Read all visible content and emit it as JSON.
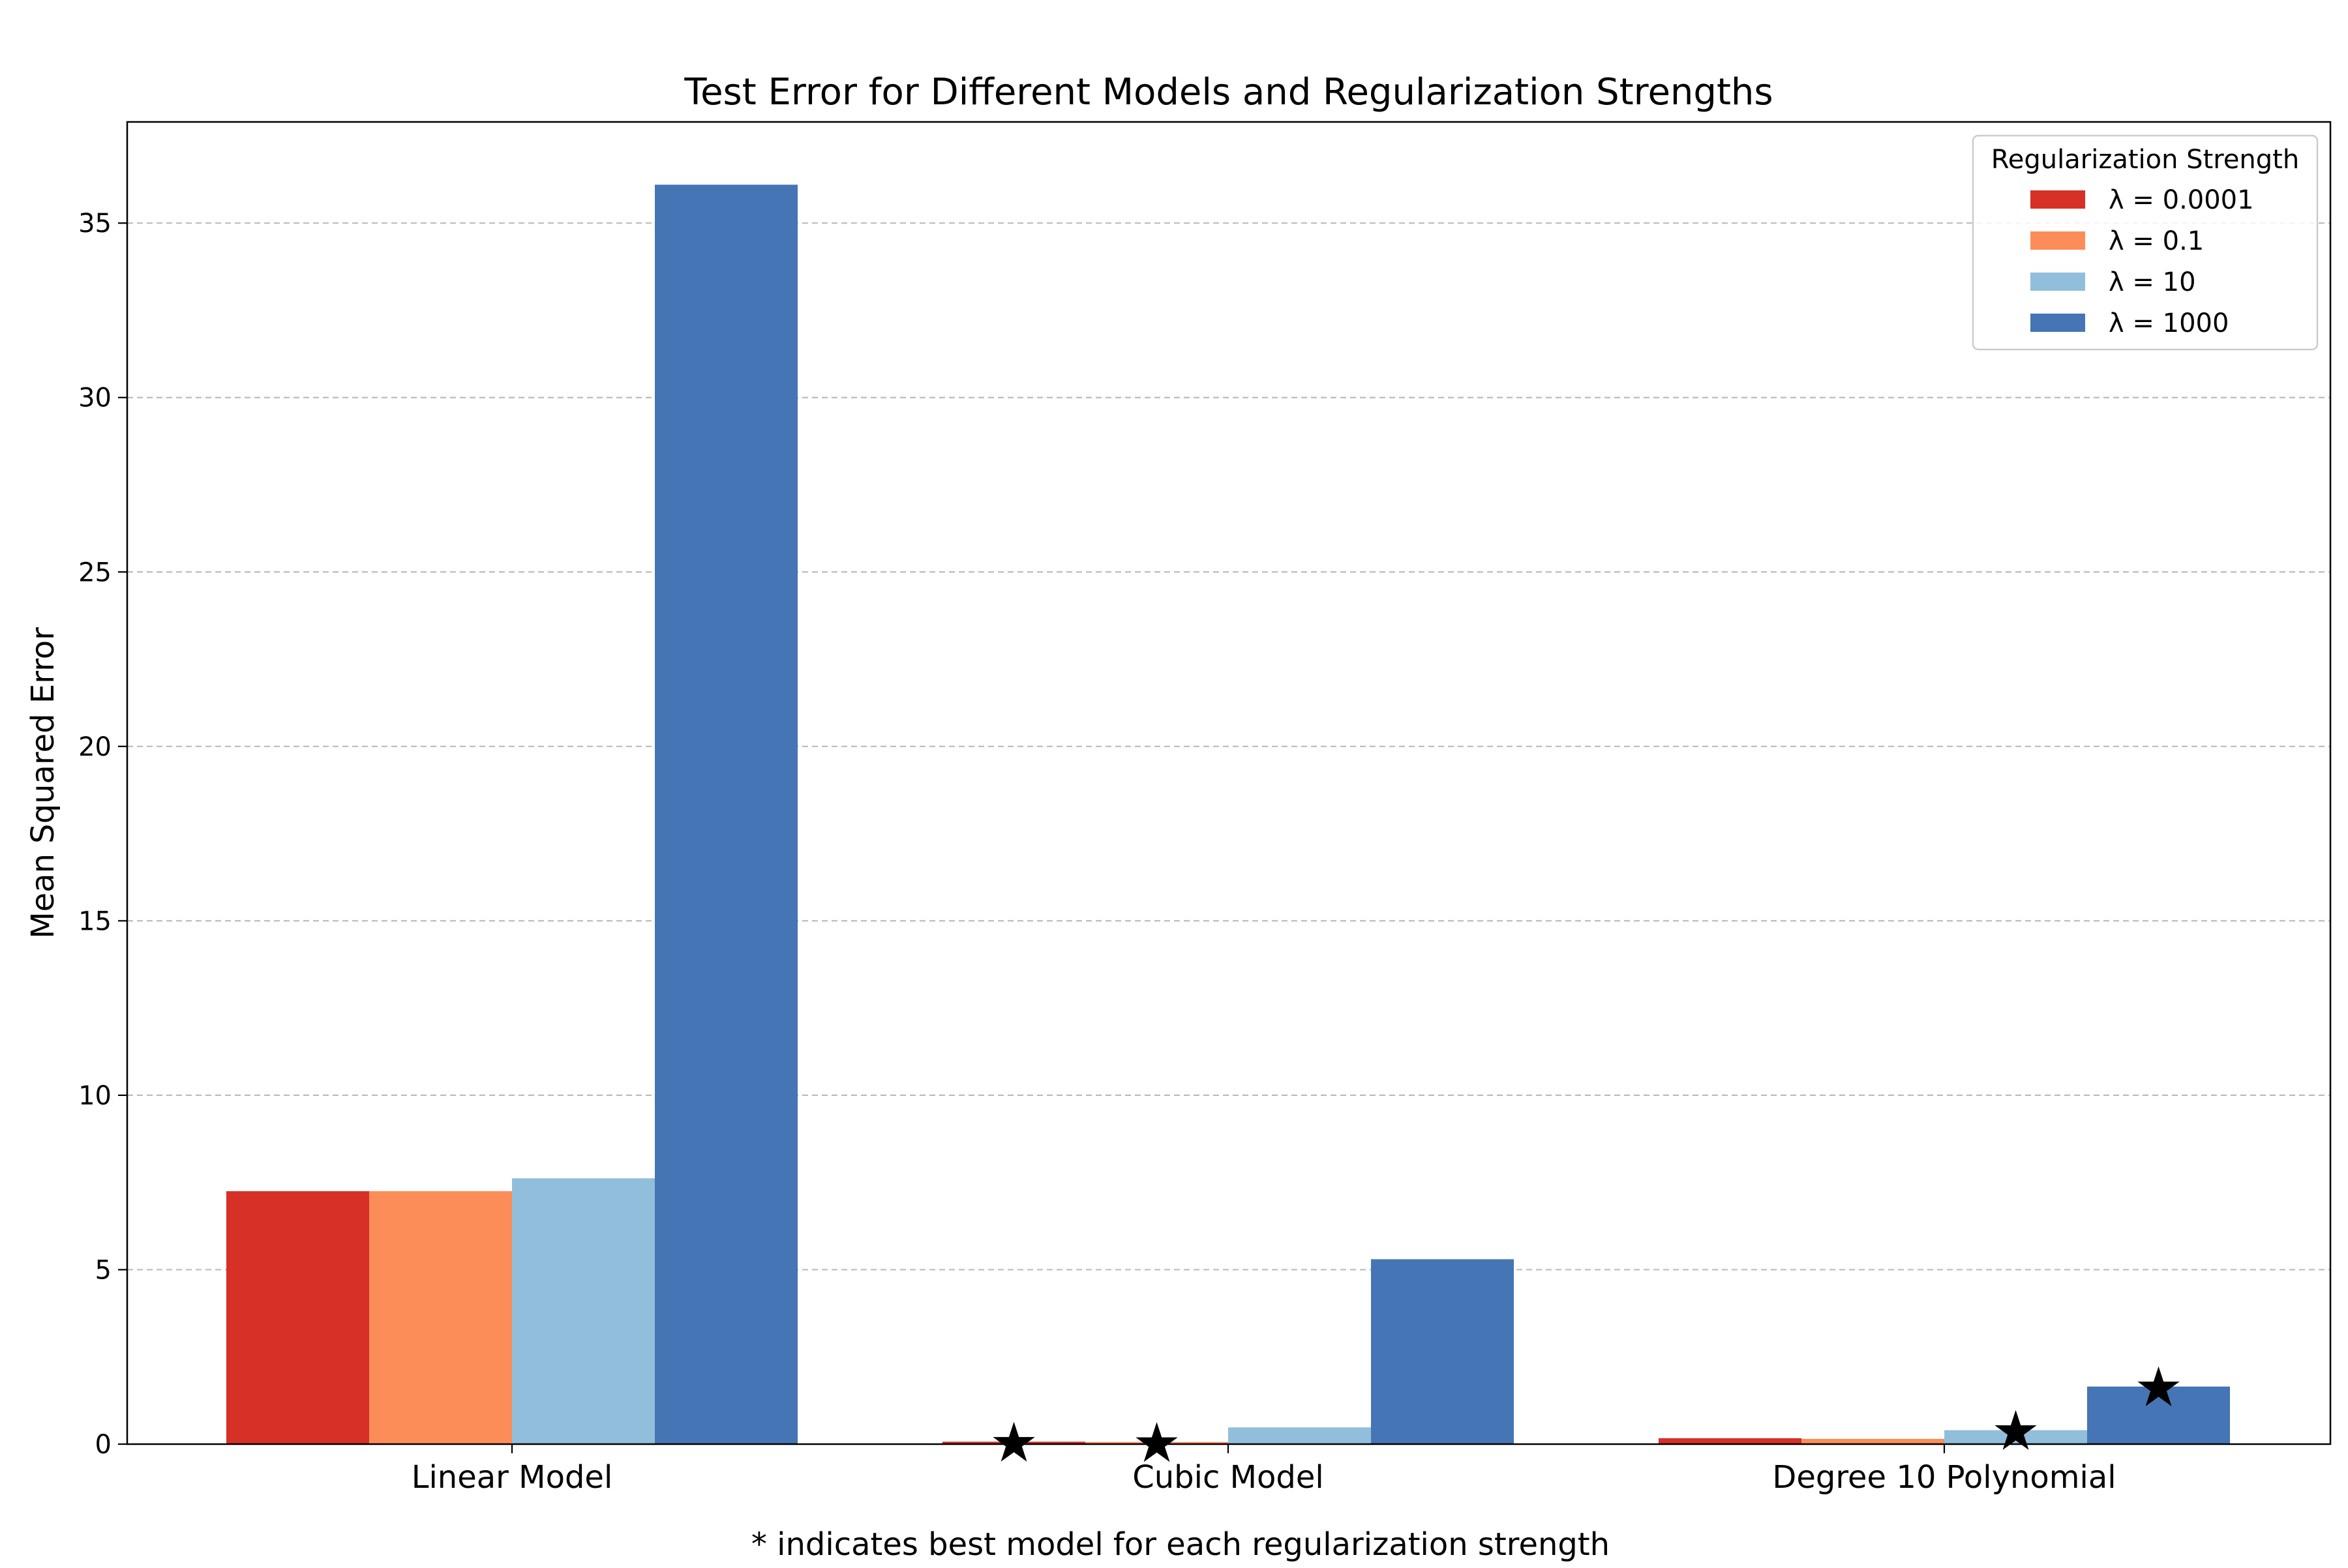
{
  "chart_data": {
    "type": "bar",
    "title": "Test Error for Different Models and Regularization Strengths",
    "xlabel": "",
    "ylabel": "Mean Squared Error",
    "footnote": "* indicates best model for each regularization strength",
    "categories": [
      "Linear Model",
      "Cubic Model",
      "Degree 10 Polynomial"
    ],
    "ylim": [
      0,
      37.9
    ],
    "yticks": [
      0,
      5,
      10,
      15,
      20,
      25,
      30,
      35
    ],
    "grid": "y-dashed",
    "legend": {
      "title": "Regularization Strength",
      "placement": "top-right"
    },
    "series": [
      {
        "name": "λ = 0.0001",
        "color": "#d73027",
        "values": [
          7.25,
          0.07,
          0.17
        ]
      },
      {
        "name": "λ = 0.1",
        "color": "#fc8d59",
        "values": [
          7.25,
          0.06,
          0.15
        ]
      },
      {
        "name": "λ = 10",
        "color": "#91bfdb",
        "values": [
          7.62,
          0.48,
          0.4
        ]
      },
      {
        "name": "λ = 1000",
        "color": "#4575b4",
        "values": [
          36.1,
          5.3,
          1.65
        ]
      }
    ],
    "best_markers": [
      {
        "series": 0,
        "category": 1,
        "symbol": "★"
      },
      {
        "series": 1,
        "category": 1,
        "symbol": "★"
      },
      {
        "series": 2,
        "category": 2,
        "symbol": "★"
      },
      {
        "series": 3,
        "category": 2,
        "symbol": "★"
      }
    ]
  }
}
